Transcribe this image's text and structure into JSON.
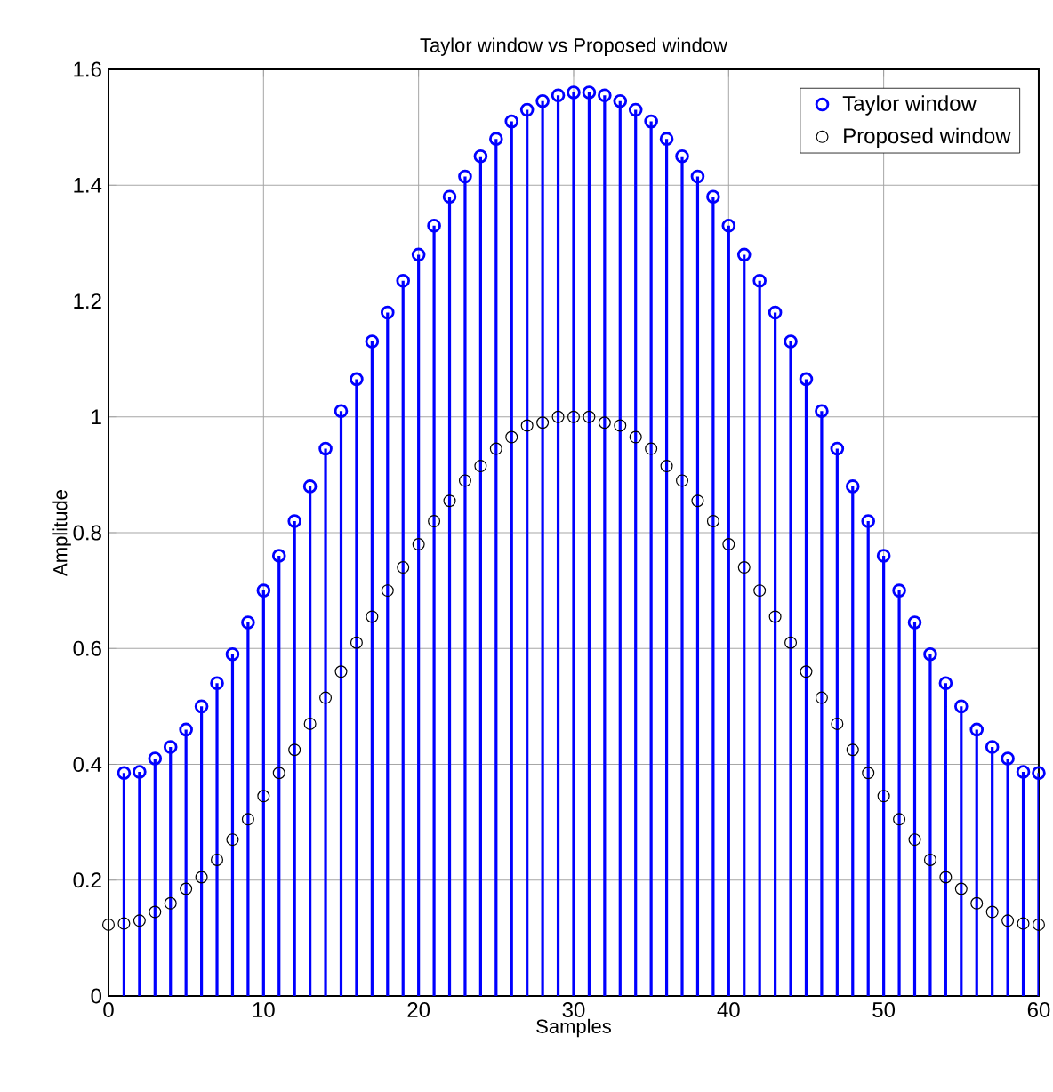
{
  "chart_data": {
    "type": "lollipop",
    "title": "Taylor window vs Proposed window",
    "xlabel": "Samples",
    "ylabel": "Amplitude",
    "xlim": [
      0,
      60
    ],
    "xticks": [
      0,
      10,
      20,
      30,
      40,
      50,
      60
    ],
    "ylim": [
      0,
      1.6
    ],
    "yticks": [
      0,
      0.2,
      0.4,
      0.6,
      0.8,
      1,
      1.2,
      1.4,
      1.6
    ],
    "grid": true,
    "legend": "top right",
    "marker": "circle",
    "series": [
      {
        "name": "Taylor window",
        "color": "#0000ff",
        "x": [
          1,
          2,
          3,
          4,
          5,
          6,
          7,
          8,
          9,
          10,
          11,
          12,
          13,
          14,
          15,
          16,
          17,
          18,
          19,
          20,
          21,
          22,
          23,
          24,
          25,
          26,
          27,
          28,
          29,
          30,
          31,
          32,
          33,
          34,
          35,
          36,
          37,
          38,
          39,
          40,
          41,
          42,
          43,
          44,
          45,
          46,
          47,
          48,
          49,
          50,
          51,
          52,
          53,
          54,
          55,
          56,
          57,
          58,
          59,
          60
        ],
        "values": [
          0.385,
          0.387,
          0.41,
          0.43,
          0.46,
          0.5,
          0.54,
          0.59,
          0.645,
          0.7,
          0.76,
          0.82,
          0.88,
          0.945,
          1.01,
          1.065,
          1.13,
          1.18,
          1.235,
          1.28,
          1.33,
          1.38,
          1.415,
          1.45,
          1.48,
          1.51,
          1.53,
          1.545,
          1.555,
          1.56,
          1.56,
          1.555,
          1.545,
          1.53,
          1.51,
          1.48,
          1.45,
          1.415,
          1.38,
          1.33,
          1.28,
          1.235,
          1.18,
          1.13,
          1.065,
          1.01,
          0.945,
          0.88,
          0.82,
          0.76,
          0.7,
          0.645,
          0.59,
          0.54,
          0.5,
          0.46,
          0.43,
          0.41,
          0.387,
          0.385
        ]
      },
      {
        "name": "Proposed window",
        "color": "#000000",
        "type": "scatter",
        "x": [
          0,
          1,
          2,
          3,
          4,
          5,
          6,
          7,
          8,
          9,
          10,
          11,
          12,
          13,
          14,
          15,
          16,
          17,
          18,
          19,
          20,
          21,
          22,
          23,
          24,
          25,
          26,
          27,
          28,
          29,
          30,
          31,
          32,
          33,
          34,
          35,
          36,
          37,
          38,
          39,
          40,
          41,
          42,
          43,
          44,
          45,
          46,
          47,
          48,
          49,
          50,
          51,
          52,
          53,
          54,
          55,
          56,
          57,
          58,
          59,
          60
        ],
        "values": [
          0.123,
          0.125,
          0.13,
          0.145,
          0.16,
          0.185,
          0.205,
          0.235,
          0.27,
          0.305,
          0.345,
          0.385,
          0.425,
          0.47,
          0.515,
          0.56,
          0.61,
          0.655,
          0.7,
          0.74,
          0.78,
          0.82,
          0.855,
          0.89,
          0.915,
          0.945,
          0.965,
          0.985,
          0.99,
          1.0,
          1.0,
          1.0,
          0.99,
          0.985,
          0.965,
          0.945,
          0.915,
          0.89,
          0.855,
          0.82,
          0.78,
          0.74,
          0.7,
          0.655,
          0.61,
          0.56,
          0.515,
          0.47,
          0.425,
          0.385,
          0.345,
          0.305,
          0.27,
          0.235,
          0.205,
          0.185,
          0.16,
          0.145,
          0.13,
          0.125,
          0.123
        ]
      }
    ]
  }
}
